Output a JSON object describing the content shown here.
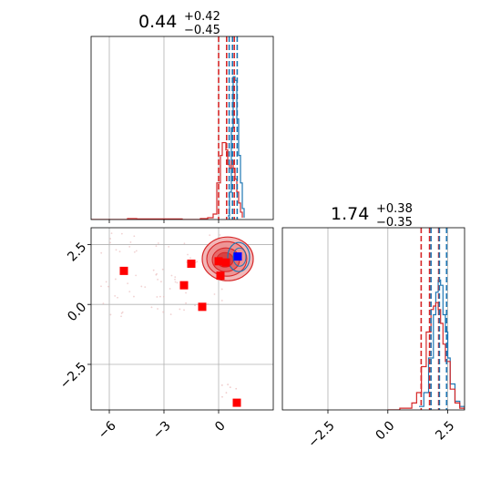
{
  "colors": {
    "blue": "#1f77b4",
    "red": "#d62728",
    "grid": "#b0b0b0",
    "marker_red": "#ff0000",
    "marker_blue": "#0000ff"
  },
  "chart_data": [
    {
      "type": "histogram",
      "panel": "top-left",
      "title_value": "0.44",
      "title_plus": "+0.42",
      "title_minus": "−0.45",
      "xlim": [
        -7.0,
        3.0
      ],
      "grid": true,
      "quantiles_blue": [
        0.58,
        0.76,
        1.02
      ],
      "quantiles_red": [
        0.0,
        0.44,
        0.86
      ],
      "series": [
        {
          "color": "blue",
          "x": [
            0.5,
            0.6,
            0.7,
            0.8,
            0.9,
            1.0,
            1.1,
            1.2,
            1.3,
            1.4
          ],
          "y": [
            0.02,
            0.15,
            0.5,
            0.78,
            0.76,
            0.55,
            0.35,
            0.2,
            0.06,
            0.01
          ]
        },
        {
          "color": "red",
          "x": [
            -7.0,
            -6.0,
            -5.0,
            -4.5,
            -2.0,
            -1.0,
            -0.6,
            -0.3,
            -0.1,
            0.1,
            0.2,
            0.3,
            0.4,
            0.5,
            0.6,
            0.7,
            0.8,
            0.9,
            1.0,
            1.1,
            1.2,
            1.3
          ],
          "y": [
            0.0,
            0.0,
            0.005,
            0.003,
            0.0,
            0.005,
            0.01,
            0.03,
            0.2,
            0.35,
            0.42,
            0.42,
            0.38,
            0.3,
            0.28,
            0.32,
            0.28,
            0.22,
            0.15,
            0.09,
            0.04,
            0.01
          ]
        }
      ]
    },
    {
      "type": "scatter",
      "panel": "bottom-left",
      "xlim": [
        -7.0,
        3.0
      ],
      "ylim": [
        -4.4,
        3.2
      ],
      "xticks": [
        -6,
        -3,
        0
      ],
      "xtick_labels": [
        "−6",
        "−3",
        "0"
      ],
      "yticks": [
        -2.5,
        0.0,
        2.5
      ],
      "ytick_labels": [
        "−2.5",
        "0.0",
        "2.5"
      ],
      "grid": true,
      "red_markers": [
        {
          "x": -5.2,
          "y": 1.4
        },
        {
          "x": -1.5,
          "y": 1.7
        },
        {
          "x": -1.9,
          "y": 0.8
        },
        {
          "x": -0.9,
          "y": -0.1
        },
        {
          "x": 0.0,
          "y": 1.8
        },
        {
          "x": 0.4,
          "y": 1.75
        },
        {
          "x": 0.1,
          "y": 1.2
        },
        {
          "x": 1.0,
          "y": -4.1
        }
      ],
      "blue_markers": [
        {
          "x": 1.05,
          "y": 2.0
        }
      ],
      "contour_center": {
        "x": 0.5,
        "y": 1.9
      }
    },
    {
      "type": "histogram",
      "panel": "bottom-right",
      "title_value": "1.74",
      "title_plus": "+0.38",
      "title_minus": "−0.35",
      "xlim": [
        -4.4,
        3.2
      ],
      "xticks": [
        -2.5,
        0.0,
        2.5
      ],
      "xtick_labels": [
        "−2.5",
        "0.0",
        "2.5"
      ],
      "grid": true,
      "quantiles_blue": [
        1.8,
        2.15,
        2.45
      ],
      "quantiles_red": [
        1.39,
        1.74,
        2.12
      ],
      "series": [
        {
          "color": "blue",
          "x": [
            1.3,
            1.5,
            1.7,
            1.9,
            2.0,
            2.1,
            2.2,
            2.3,
            2.4,
            2.5,
            2.6,
            2.8,
            3.0,
            3.2
          ],
          "y": [
            0.02,
            0.1,
            0.3,
            0.55,
            0.68,
            0.75,
            0.72,
            0.55,
            0.45,
            0.3,
            0.15,
            0.05,
            0.02,
            0.0
          ]
        },
        {
          "color": "red",
          "x": [
            0.0,
            0.5,
            1.0,
            1.2,
            1.4,
            1.6,
            1.8,
            1.9,
            2.0,
            2.1,
            2.2,
            2.3,
            2.4,
            2.6,
            2.8,
            3.0,
            3.2
          ],
          "y": [
            0.0,
            0.01,
            0.04,
            0.1,
            0.25,
            0.45,
            0.58,
            0.6,
            0.62,
            0.58,
            0.5,
            0.38,
            0.28,
            0.12,
            0.04,
            0.01,
            0.0
          ]
        }
      ]
    }
  ]
}
